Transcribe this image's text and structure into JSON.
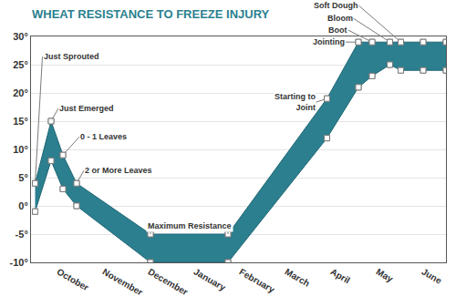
{
  "chart_data": {
    "type": "area",
    "title": "WHEAT RESISTANCE TO FREEZE INJURY",
    "x": [
      -0.51,
      -0.16,
      0.1,
      0.4,
      2.02,
      3.72,
      5.89,
      6.58,
      6.88,
      7.27,
      7.51,
      8.0,
      8.5
    ],
    "series": [
      {
        "values": [
          -1,
          8,
          3,
          0,
          -10,
          -10,
          12,
          21,
          23,
          25,
          24,
          24,
          24
        ]
      },
      {
        "values": [
          4,
          15,
          9,
          4,
          -5,
          -5,
          19,
          29,
          29,
          29,
          29,
          29,
          29
        ]
      }
    ],
    "color": "#2b7f8f",
    "marker": "square",
    "xlim": [
      -0.6,
      8.5
    ],
    "xticks": [
      {
        "value": 0,
        "label": "October"
      },
      {
        "value": 1,
        "label": "November"
      },
      {
        "value": 2,
        "label": "December"
      },
      {
        "value": 3,
        "label": "January"
      },
      {
        "value": 4,
        "label": "February"
      },
      {
        "value": 5,
        "label": "March"
      },
      {
        "value": 6,
        "label": "April"
      },
      {
        "value": 7,
        "label": "May"
      },
      {
        "value": 8,
        "label": "June"
      }
    ],
    "ylim": [
      -10,
      30
    ],
    "yticks": [
      {
        "value": -10,
        "label": "-10°"
      },
      {
        "value": -5,
        "label": "-5°"
      },
      {
        "value": 0,
        "label": "0°"
      },
      {
        "value": 5,
        "label": "5°"
      },
      {
        "value": 10,
        "label": "10°"
      },
      {
        "value": 15,
        "label": "15°"
      },
      {
        "value": 20,
        "label": "20°"
      },
      {
        "value": 25,
        "label": "25°"
      },
      {
        "value": 30,
        "label": "30°"
      }
    ],
    "grid": true,
    "annotations": [
      {
        "text": "Just Sprouted",
        "x": -0.51,
        "y": 4
      },
      {
        "text": "Just Emerged",
        "x": -0.16,
        "y": 15
      },
      {
        "text": "0 - 1 Leaves",
        "x": 0.1,
        "y": 9
      },
      {
        "text": "2 or More Leaves",
        "x": 0.4,
        "y": 4
      },
      {
        "text": "Starting to\nJoint",
        "x": 5.89,
        "y": 19
      },
      {
        "text": "Jointing",
        "x": 6.58,
        "y": 29
      },
      {
        "text": "Boot",
        "x": 6.88,
        "y": 29
      },
      {
        "text": "Bloom",
        "x": 7.27,
        "y": 29
      },
      {
        "text": "Soft Dough",
        "x": 7.51,
        "y": 29
      },
      {
        "text": "Maximum Resistance",
        "x": [
          2.02,
          3.72
        ],
        "y": -5
      }
    ]
  }
}
